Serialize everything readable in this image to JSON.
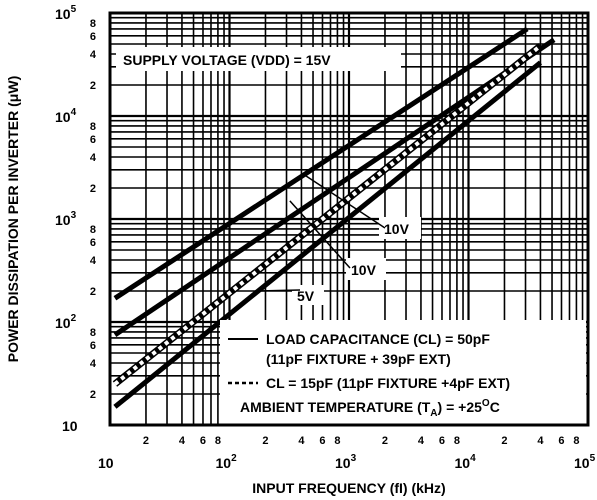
{
  "chart_data": {
    "type": "line",
    "xscale": "log",
    "yscale": "log",
    "xlim": [
      10,
      100000
    ],
    "ylim": [
      10,
      100000
    ],
    "grid": true,
    "xlabel": "INPUT FREQUENCY (fI) (kHz)",
    "ylabel": "POWER DISSIPATION PER INVERTER (μW)",
    "x_major_ticks": [
      "10",
      "10",
      "10",
      "10",
      "10"
    ],
    "x_major_exponents": [
      "",
      "2",
      "3",
      "4",
      "5"
    ],
    "x_minor_ticks": [
      "2",
      "4",
      "6",
      "8"
    ],
    "y_major_ticks": [
      "10",
      "10",
      "10",
      "10",
      "10"
    ],
    "y_major_exponents": [
      "",
      "2",
      "3",
      "4",
      "5"
    ],
    "y_minor_ticks": [
      "2",
      "4",
      "6",
      "8"
    ],
    "series": [
      {
        "x": [
          11,
          31000
        ],
        "y": [
          170,
          70000
        ],
        "style": "solid"
      },
      {
        "x": [
          11,
          52000
        ],
        "y": [
          75,
          55000
        ],
        "style": "solid"
      },
      {
        "x": [
          11,
          40000
        ],
        "y": [
          25,
          48000
        ],
        "style": "dashed"
      },
      {
        "x": [
          11,
          40000
        ],
        "y": [
          15,
          33000
        ],
        "style": "solid"
      }
    ],
    "annotations": {
      "supply_voltage": "SUPPLY VOLTAGE (VDD) = 15V",
      "label_10v_a": "10V",
      "label_10v_b": "10V",
      "label_5v": "5V",
      "legend_solid_line1": "LOAD CAPACITANCE (CL) = 50pF",
      "legend_solid_line2": "(11pF FIXTURE + 39pF EXT)",
      "legend_dashed": "CL = 15pF (11pF FIXTURE +4pF EXT)",
      "ambient_prefix": "AMBIENT TEMPERATURE (T",
      "ambient_sub": "A",
      "ambient_mid": ") = +25",
      "ambient_sup": "O",
      "ambient_unit": "C"
    }
  }
}
